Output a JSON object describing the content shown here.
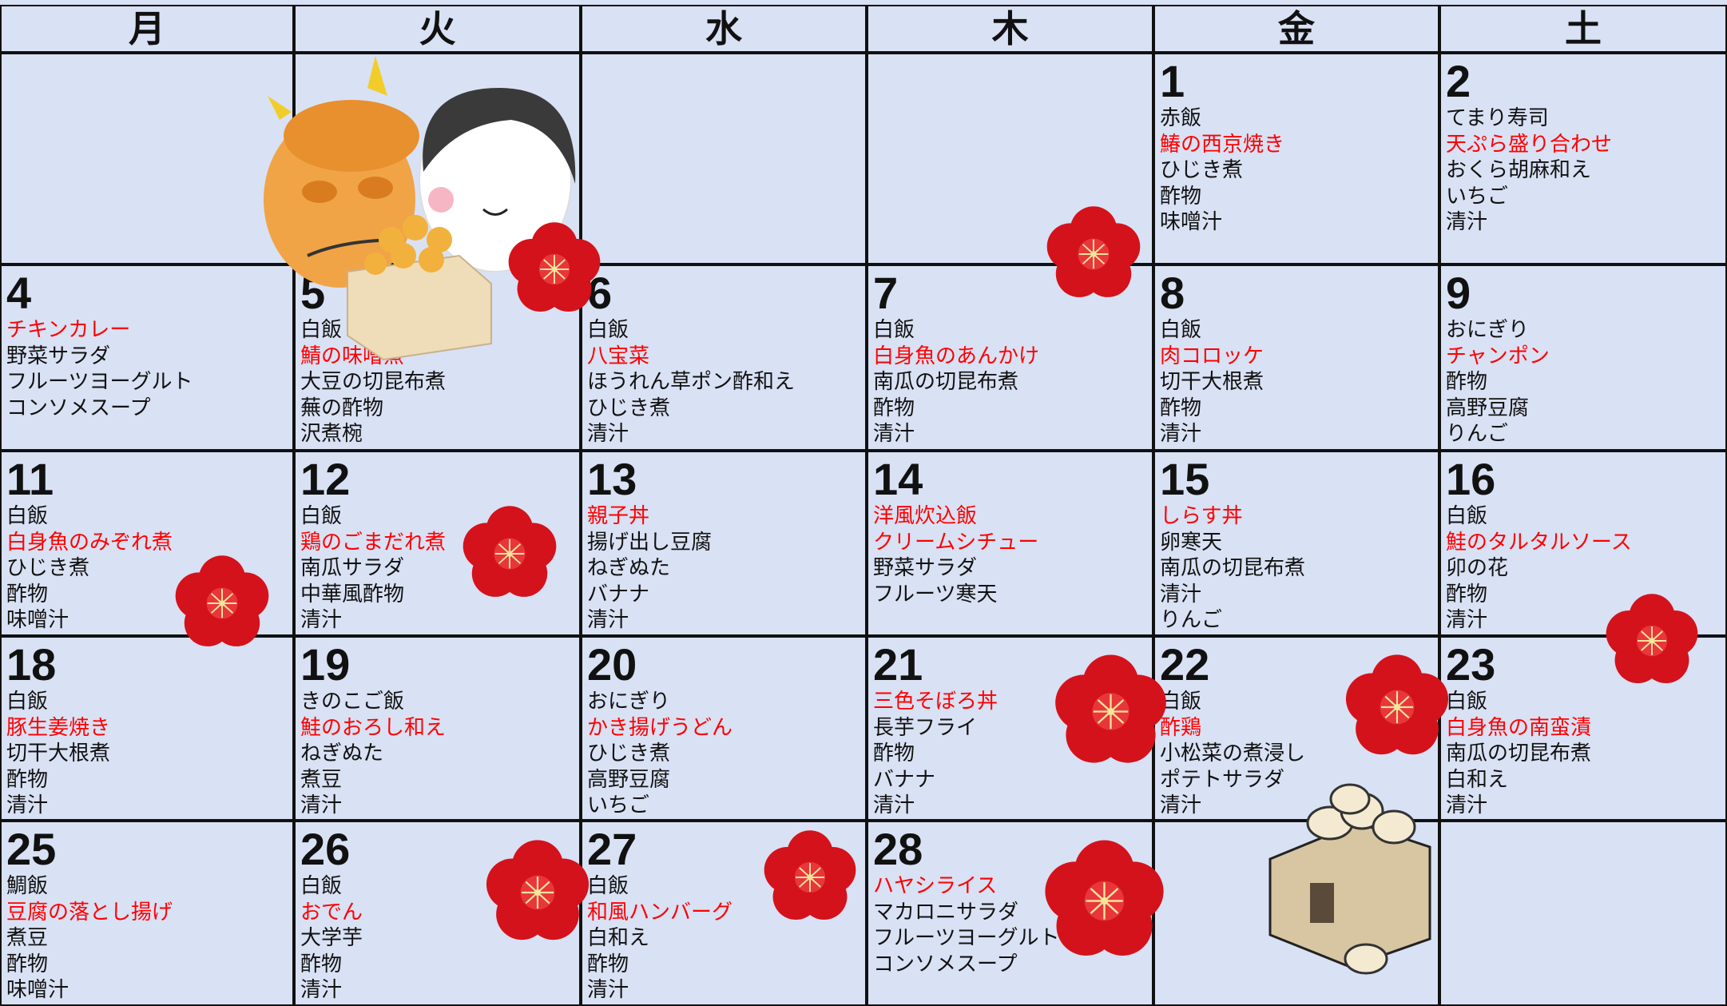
{
  "headers": [
    "月",
    "火",
    "水",
    "木",
    "金",
    "土"
  ],
  "weeks": [
    [
      null,
      null,
      null,
      null,
      {
        "day": 1,
        "items": [
          {
            "text": "赤飯"
          },
          {
            "text": "鰆の西京焼き",
            "color": "#ff0000"
          },
          {
            "text": "ひじき煮"
          },
          {
            "text": "酢物"
          },
          {
            "text": "味噌汁"
          }
        ]
      },
      {
        "day": 2,
        "items": [
          {
            "text": "てまり寿司"
          },
          {
            "text": "天ぷら盛り合わせ",
            "color": "#ff0000"
          },
          {
            "text": "おくら胡麻和え"
          },
          {
            "text": "いちご"
          },
          {
            "text": "清汁"
          }
        ]
      }
    ],
    [
      {
        "day": 4,
        "items": [
          {
            "text": "チキンカレー",
            "color": "#ff0000"
          },
          {
            "text": "野菜サラダ"
          },
          {
            "text": "フルーツヨーグルト"
          },
          {
            "text": "コンソメスープ"
          }
        ]
      },
      {
        "day": 5,
        "items": [
          {
            "text": "白飯"
          },
          {
            "text": "鯖の味噌煮",
            "color": "#ff0000"
          },
          {
            "text": "大豆の切昆布煮"
          },
          {
            "text": "蕪の酢物"
          },
          {
            "text": "沢煮椀"
          }
        ]
      },
      {
        "day": 6,
        "items": [
          {
            "text": "白飯"
          },
          {
            "text": "八宝菜",
            "color": "#ff0000"
          },
          {
            "text": "ほうれん草ポン酢和え"
          },
          {
            "text": "ひじき煮"
          },
          {
            "text": "清汁"
          }
        ]
      },
      {
        "day": 7,
        "items": [
          {
            "text": "白飯"
          },
          {
            "text": "白身魚のあんかけ",
            "color": "#ff0000"
          },
          {
            "text": "南瓜の切昆布煮"
          },
          {
            "text": "酢物"
          },
          {
            "text": "清汁"
          }
        ]
      },
      {
        "day": 8,
        "items": [
          {
            "text": "白飯"
          },
          {
            "text": "肉コロッケ",
            "color": "#ff0000"
          },
          {
            "text": "切干大根煮"
          },
          {
            "text": "酢物"
          },
          {
            "text": "清汁"
          }
        ]
      },
      {
        "day": 9,
        "items": [
          {
            "text": "おにぎり"
          },
          {
            "text": "チャンポン",
            "color": "#ff0000"
          },
          {
            "text": "酢物"
          },
          {
            "text": "高野豆腐"
          },
          {
            "text": "りんご"
          }
        ]
      }
    ],
    [
      {
        "day": 11,
        "items": [
          {
            "text": "白飯"
          },
          {
            "text": "白身魚のみぞれ煮",
            "color": "#ff0000"
          },
          {
            "text": "ひじき煮"
          },
          {
            "text": "酢物"
          },
          {
            "text": "味噌汁"
          }
        ]
      },
      {
        "day": 12,
        "items": [
          {
            "text": "白飯"
          },
          {
            "text": "鶏のごまだれ煮",
            "color": "#ff0000"
          },
          {
            "text": "南瓜サラダ"
          },
          {
            "text": "中華風酢物"
          },
          {
            "text": "清汁"
          }
        ]
      },
      {
        "day": 13,
        "items": [
          {
            "text": "親子丼",
            "color": "#ff0000"
          },
          {
            "text": "揚げ出し豆腐"
          },
          {
            "text": "ねぎぬた"
          },
          {
            "text": "バナナ"
          },
          {
            "text": "清汁"
          }
        ]
      },
      {
        "day": 14,
        "items": [
          {
            "text": "洋風炊込飯",
            "color": "#ff0000"
          },
          {
            "text": "クリームシチュー",
            "color": "#ff0000"
          },
          {
            "text": "野菜サラダ"
          },
          {
            "text": "フルーツ寒天"
          }
        ]
      },
      {
        "day": 15,
        "items": [
          {
            "text": "しらす丼",
            "color": "#ff0000"
          },
          {
            "text": "卵寒天"
          },
          {
            "text": "南瓜の切昆布煮"
          },
          {
            "text": "清汁"
          },
          {
            "text": "りんご"
          }
        ]
      },
      {
        "day": 16,
        "items": [
          {
            "text": "白飯"
          },
          {
            "text": "鮭のタルタルソース",
            "color": "#ff0000"
          },
          {
            "text": "卯の花"
          },
          {
            "text": "酢物"
          },
          {
            "text": "清汁"
          }
        ]
      }
    ],
    [
      {
        "day": 18,
        "items": [
          {
            "text": "白飯"
          },
          {
            "text": "豚生姜焼き",
            "color": "#ff0000"
          },
          {
            "text": "切干大根煮"
          },
          {
            "text": "酢物"
          },
          {
            "text": "清汁"
          }
        ]
      },
      {
        "day": 19,
        "items": [
          {
            "text": "きのこご飯"
          },
          {
            "text": "鮭のおろし和え",
            "color": "#ff0000"
          },
          {
            "text": "ねぎぬた"
          },
          {
            "text": "煮豆"
          },
          {
            "text": "清汁"
          }
        ]
      },
      {
        "day": 20,
        "items": [
          {
            "text": "おにぎり"
          },
          {
            "text": "かき揚げうどん",
            "color": "#ff0000"
          },
          {
            "text": "ひじき煮"
          },
          {
            "text": "高野豆腐"
          },
          {
            "text": "いちご"
          }
        ]
      },
      {
        "day": 21,
        "items": [
          {
            "text": "三色そぼろ丼",
            "color": "#ff0000"
          },
          {
            "text": "長芋フライ"
          },
          {
            "text": "酢物"
          },
          {
            "text": "バナナ"
          },
          {
            "text": "清汁"
          }
        ]
      },
      {
        "day": 22,
        "items": [
          {
            "text": "白飯"
          },
          {
            "text": "酢鶏",
            "color": "#ff0000"
          },
          {
            "text": "小松菜の煮浸し"
          },
          {
            "text": "ポテトサラダ"
          },
          {
            "text": "清汁"
          }
        ]
      },
      {
        "day": 23,
        "items": [
          {
            "text": "白飯"
          },
          {
            "text": "白身魚の南蛮漬",
            "color": "#ff0000"
          },
          {
            "text": "南瓜の切昆布煮"
          },
          {
            "text": "白和え"
          },
          {
            "text": "清汁"
          }
        ]
      }
    ],
    [
      {
        "day": 25,
        "items": [
          {
            "text": "鯛飯"
          },
          {
            "text": "豆腐の落とし揚げ",
            "color": "#ff0000"
          },
          {
            "text": "煮豆"
          },
          {
            "text": "酢物"
          },
          {
            "text": "味噌汁"
          }
        ]
      },
      {
        "day": 26,
        "items": [
          {
            "text": "白飯"
          },
          {
            "text": "おでん",
            "color": "#ff0000"
          },
          {
            "text": "大学芋"
          },
          {
            "text": "酢物"
          },
          {
            "text": "清汁"
          }
        ]
      },
      {
        "day": 27,
        "items": [
          {
            "text": "白飯"
          },
          {
            "text": "和風ハンバーグ",
            "color": "#ff0000"
          },
          {
            "text": "白和え"
          },
          {
            "text": "酢物"
          },
          {
            "text": "清汁"
          }
        ]
      },
      {
        "day": 28,
        "items": [
          {
            "text": "ハヤシライス",
            "color": "#ff0000"
          },
          {
            "text": "マカロニサラダ"
          },
          {
            "text": "フルーツヨーグルト"
          },
          {
            "text": "コンソメスープ"
          }
        ]
      },
      null,
      null
    ]
  ]
}
